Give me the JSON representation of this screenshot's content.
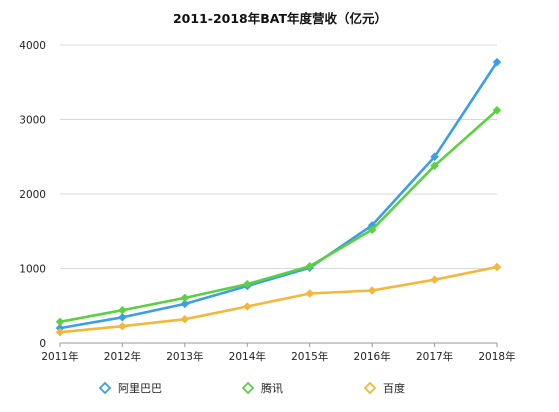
{
  "chart_data": {
    "type": "line",
    "title": "2011-2018年BAT年度营收（亿元）",
    "categories": [
      "2011年",
      "2012年",
      "2013年",
      "2014年",
      "2015年",
      "2016年",
      "2017年",
      "2018年"
    ],
    "ylim": [
      0,
      4000
    ],
    "yticks": [
      0,
      1000,
      2000,
      3000,
      4000
    ],
    "grid": true,
    "legend_position": "bottom",
    "series": [
      {
        "name": "阿里巴巴",
        "color": "#3b9ee8",
        "values": [
          200,
          345,
          525,
          765,
          1010,
          1580,
          2500,
          3770
        ]
      },
      {
        "name": "腾讯",
        "color": "#5bd13f",
        "values": [
          285,
          440,
          605,
          790,
          1030,
          1520,
          2380,
          3125
        ]
      },
      {
        "name": "百度",
        "color": "#f4b73c",
        "values": [
          145,
          225,
          320,
          490,
          665,
          705,
          850,
          1020
        ]
      }
    ]
  }
}
